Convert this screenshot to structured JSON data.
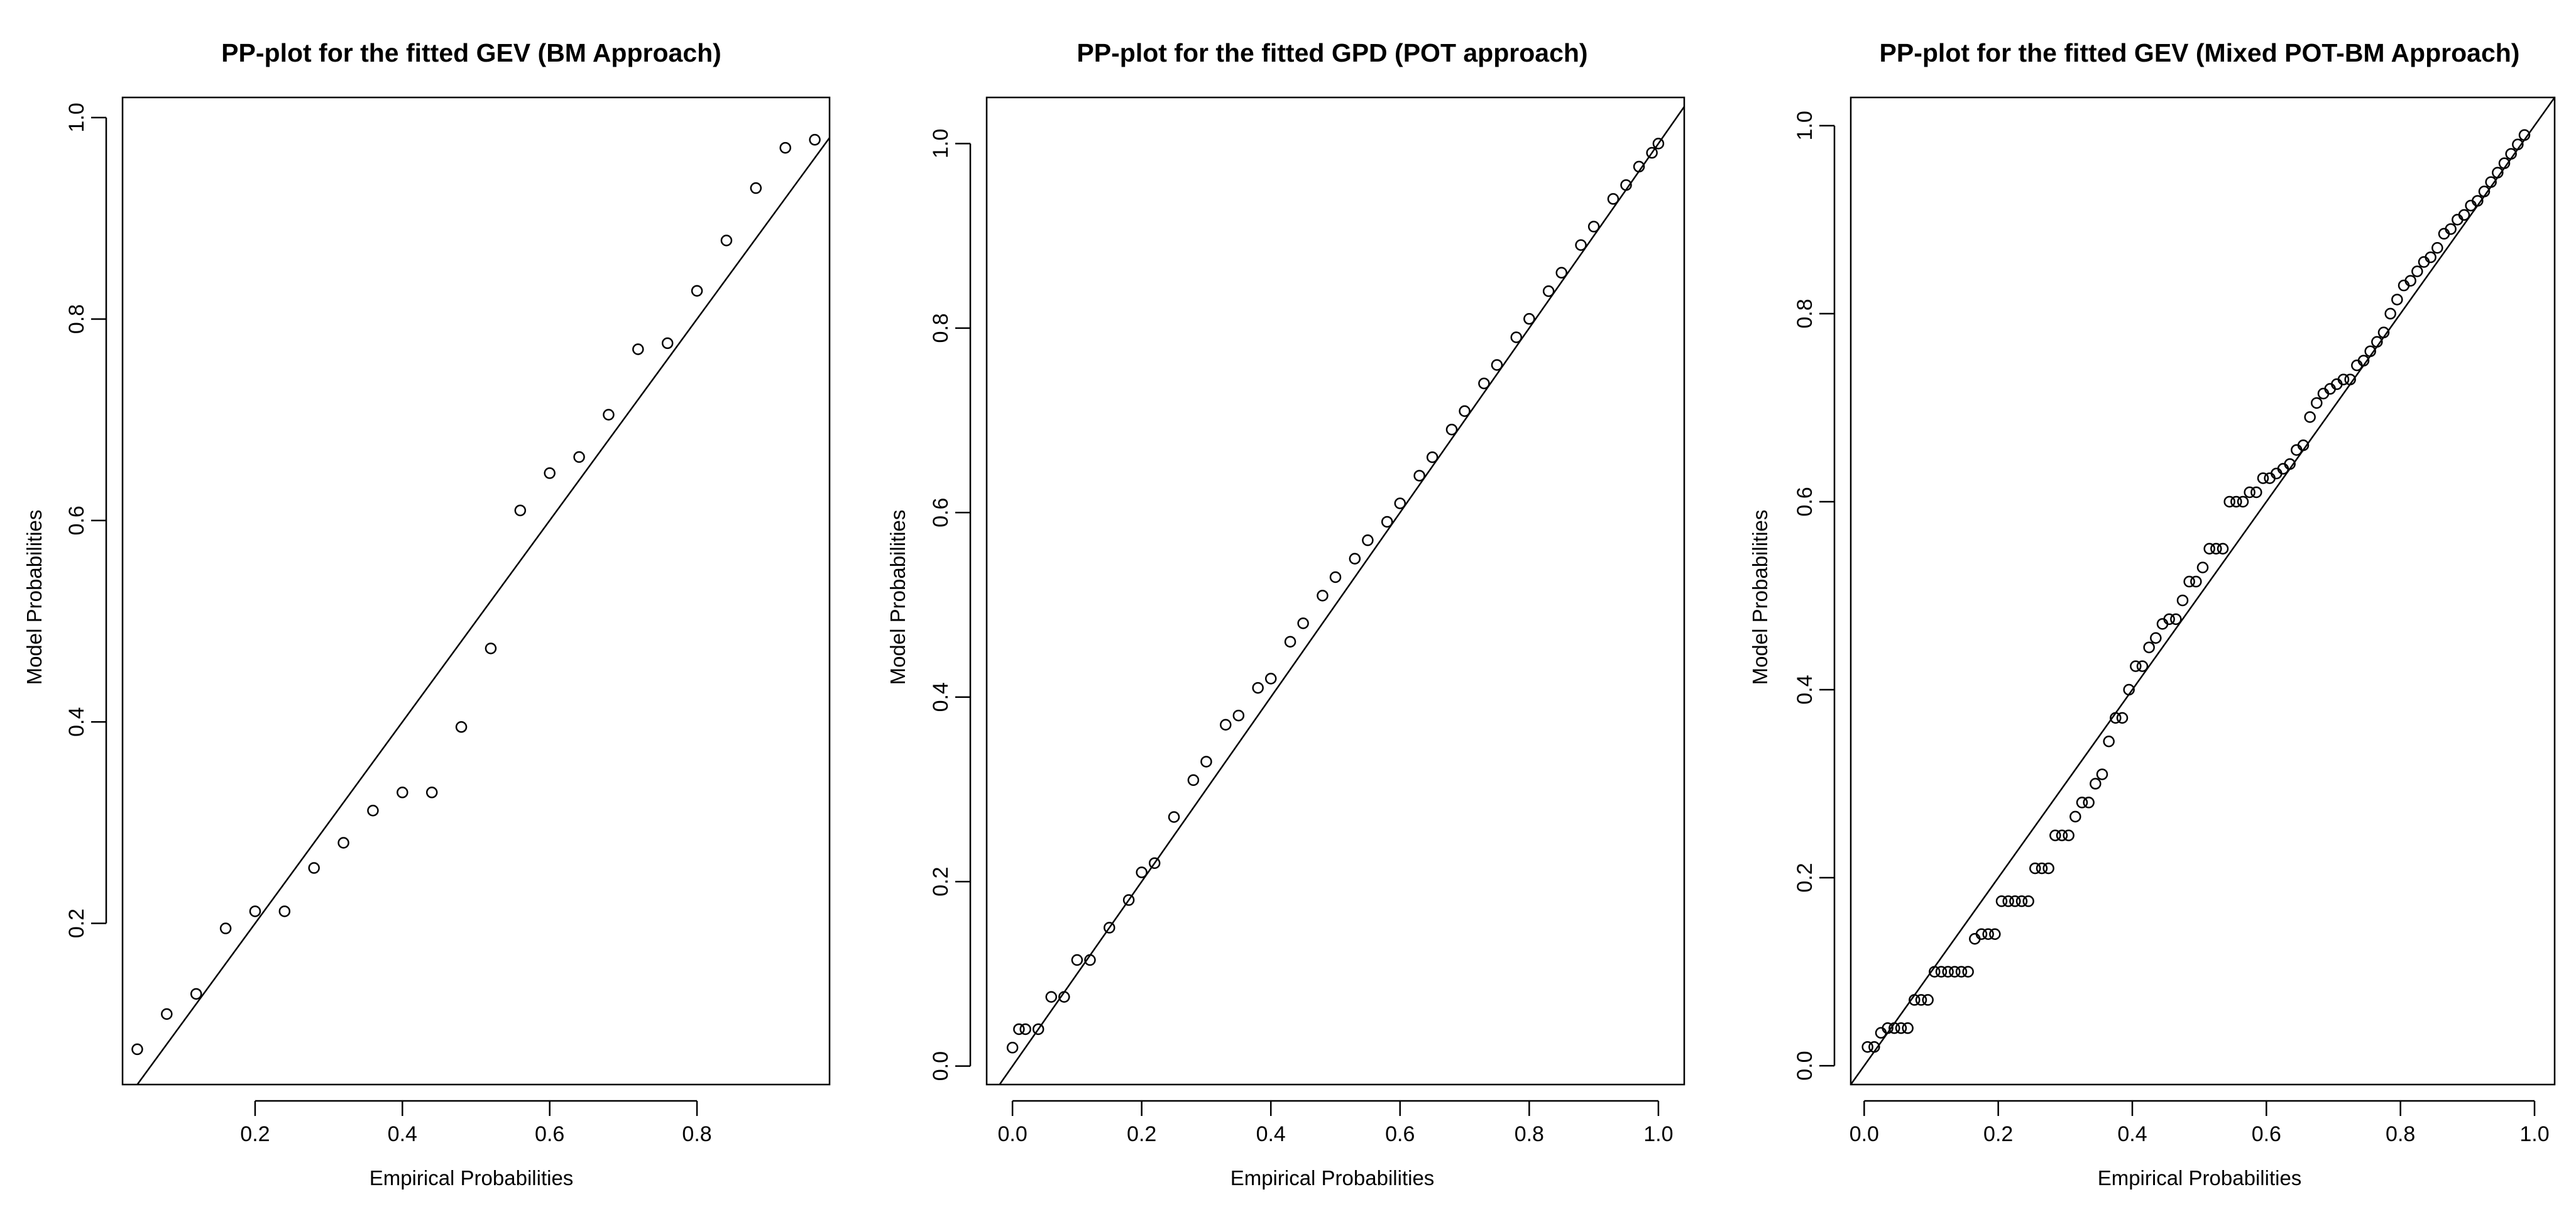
{
  "chart_data": [
    {
      "type": "scatter",
      "title": "PP-plot for the fitted GEV (BM Approach)",
      "xlabel": "Empirical Probabilities",
      "ylabel": "Model Probabilities",
      "xlim": [
        0.02,
        0.98
      ],
      "ylim": [
        0.04,
        1.02
      ],
      "xticks": [
        0.2,
        0.4,
        0.6,
        0.8
      ],
      "yticks": [
        0.2,
        0.4,
        0.6,
        0.8,
        1.0
      ],
      "xtick_labels": [
        "0.2",
        "0.4",
        "0.6",
        "0.8"
      ],
      "ytick_labels": [
        "0.2",
        "0.4",
        "0.6",
        "0.8",
        "1.0"
      ],
      "reference_line": "y = x",
      "marker": "open-circle",
      "series": [
        {
          "x": [
            0.04,
            0.08,
            0.12,
            0.16,
            0.2,
            0.24,
            0.28,
            0.32,
            0.36,
            0.4,
            0.44,
            0.48,
            0.52,
            0.56,
            0.6,
            0.64,
            0.68,
            0.72,
            0.76,
            0.8,
            0.84,
            0.88,
            0.92,
            0.96
          ],
          "y": [
            0.075,
            0.11,
            0.13,
            0.195,
            0.212,
            0.212,
            0.255,
            0.28,
            0.312,
            0.33,
            0.33,
            0.395,
            0.473,
            0.61,
            0.647,
            0.663,
            0.705,
            0.77,
            0.776,
            0.828,
            0.878,
            0.93,
            0.97,
            0.978
          ]
        }
      ]
    },
    {
      "type": "scatter",
      "title": "PP-plot for the fitted GPD (POT approach)",
      "xlabel": "Empirical Probabilities",
      "ylabel": "Model Probabilities",
      "xlim": [
        -0.04,
        1.04
      ],
      "ylim": [
        -0.02,
        1.05
      ],
      "xticks": [
        0.0,
        0.2,
        0.4,
        0.6,
        0.8,
        1.0
      ],
      "yticks": [
        0.0,
        0.2,
        0.4,
        0.6,
        0.8,
        1.0
      ],
      "xtick_labels": [
        "0.0",
        "0.2",
        "0.4",
        "0.6",
        "0.8",
        "1.0"
      ],
      "ytick_labels": [
        "0.0",
        "0.2",
        "0.4",
        "0.6",
        "0.8",
        "1.0"
      ],
      "reference_line": "y = x",
      "marker": "open-circle",
      "series": [
        {
          "x": [
            0.0,
            0.01,
            0.02,
            0.04,
            0.06,
            0.08,
            0.1,
            0.12,
            0.15,
            0.18,
            0.2,
            0.22,
            0.25,
            0.28,
            0.3,
            0.33,
            0.35,
            0.38,
            0.4,
            0.43,
            0.45,
            0.48,
            0.5,
            0.53,
            0.55,
            0.58,
            0.6,
            0.63,
            0.65,
            0.68,
            0.7,
            0.73,
            0.75,
            0.78,
            0.8,
            0.83,
            0.85,
            0.88,
            0.9,
            0.93,
            0.95,
            0.97,
            0.99,
            1.0
          ],
          "y": [
            0.02,
            0.04,
            0.04,
            0.04,
            0.075,
            0.075,
            0.115,
            0.115,
            0.15,
            0.18,
            0.21,
            0.22,
            0.27,
            0.31,
            0.33,
            0.37,
            0.38,
            0.41,
            0.42,
            0.46,
            0.48,
            0.51,
            0.53,
            0.55,
            0.57,
            0.59,
            0.61,
            0.64,
            0.66,
            0.69,
            0.71,
            0.74,
            0.76,
            0.79,
            0.81,
            0.84,
            0.86,
            0.89,
            0.91,
            0.94,
            0.955,
            0.975,
            0.99,
            1.0
          ]
        }
      ]
    },
    {
      "type": "scatter",
      "title": "PP-plot for the fitted GEV (Mixed POT-BM Approach)",
      "xlabel": "Empirical Probabilities",
      "ylabel": "Model Probabilities",
      "xlim": [
        -0.02,
        1.03
      ],
      "ylim": [
        -0.02,
        1.03
      ],
      "xticks": [
        0.0,
        0.2,
        0.4,
        0.6,
        0.8,
        1.0
      ],
      "yticks": [
        0.0,
        0.2,
        0.4,
        0.6,
        0.8,
        1.0
      ],
      "xtick_labels": [
        "0.0",
        "0.2",
        "0.4",
        "0.6",
        "0.8",
        "1.0"
      ],
      "ytick_labels": [
        "0.0",
        "0.2",
        "0.4",
        "0.6",
        "0.8",
        "1.0"
      ],
      "reference_line": "y = x",
      "marker": "open-circle",
      "series": [
        {
          "x": [
            0.005,
            0.015,
            0.025,
            0.035,
            0.045,
            0.055,
            0.065,
            0.075,
            0.085,
            0.095,
            0.105,
            0.115,
            0.125,
            0.135,
            0.145,
            0.155,
            0.165,
            0.175,
            0.185,
            0.195,
            0.205,
            0.215,
            0.225,
            0.235,
            0.245,
            0.255,
            0.265,
            0.275,
            0.285,
            0.295,
            0.305,
            0.315,
            0.325,
            0.335,
            0.345,
            0.355,
            0.365,
            0.375,
            0.385,
            0.395,
            0.405,
            0.415,
            0.425,
            0.435,
            0.445,
            0.455,
            0.465,
            0.475,
            0.485,
            0.495,
            0.505,
            0.515,
            0.525,
            0.535,
            0.545,
            0.555,
            0.565,
            0.575,
            0.585,
            0.595,
            0.605,
            0.615,
            0.625,
            0.635,
            0.645,
            0.655,
            0.665,
            0.675,
            0.685,
            0.695,
            0.705,
            0.715,
            0.725,
            0.735,
            0.745,
            0.755,
            0.765,
            0.775,
            0.785,
            0.795,
            0.805,
            0.815,
            0.825,
            0.835,
            0.845,
            0.855,
            0.865,
            0.875,
            0.885,
            0.895,
            0.905,
            0.915,
            0.925,
            0.935,
            0.945,
            0.955,
            0.965,
            0.975,
            0.985
          ],
          "y": [
            0.02,
            0.02,
            0.035,
            0.04,
            0.04,
            0.04,
            0.04,
            0.07,
            0.07,
            0.07,
            0.1,
            0.1,
            0.1,
            0.1,
            0.1,
            0.1,
            0.135,
            0.14,
            0.14,
            0.14,
            0.175,
            0.175,
            0.175,
            0.175,
            0.175,
            0.21,
            0.21,
            0.21,
            0.245,
            0.245,
            0.245,
            0.265,
            0.28,
            0.28,
            0.3,
            0.31,
            0.345,
            0.37,
            0.37,
            0.4,
            0.425,
            0.425,
            0.445,
            0.455,
            0.47,
            0.475,
            0.475,
            0.495,
            0.515,
            0.515,
            0.53,
            0.55,
            0.55,
            0.55,
            0.6,
            0.6,
            0.6,
            0.61,
            0.61,
            0.625,
            0.625,
            0.63,
            0.635,
            0.64,
            0.655,
            0.66,
            0.69,
            0.705,
            0.715,
            0.72,
            0.725,
            0.73,
            0.73,
            0.745,
            0.75,
            0.76,
            0.77,
            0.78,
            0.8,
            0.815,
            0.83,
            0.835,
            0.845,
            0.855,
            0.86,
            0.87,
            0.885,
            0.89,
            0.9,
            0.905,
            0.915,
            0.92,
            0.93,
            0.94,
            0.95,
            0.96,
            0.97,
            0.98,
            0.99
          ]
        }
      ]
    }
  ]
}
